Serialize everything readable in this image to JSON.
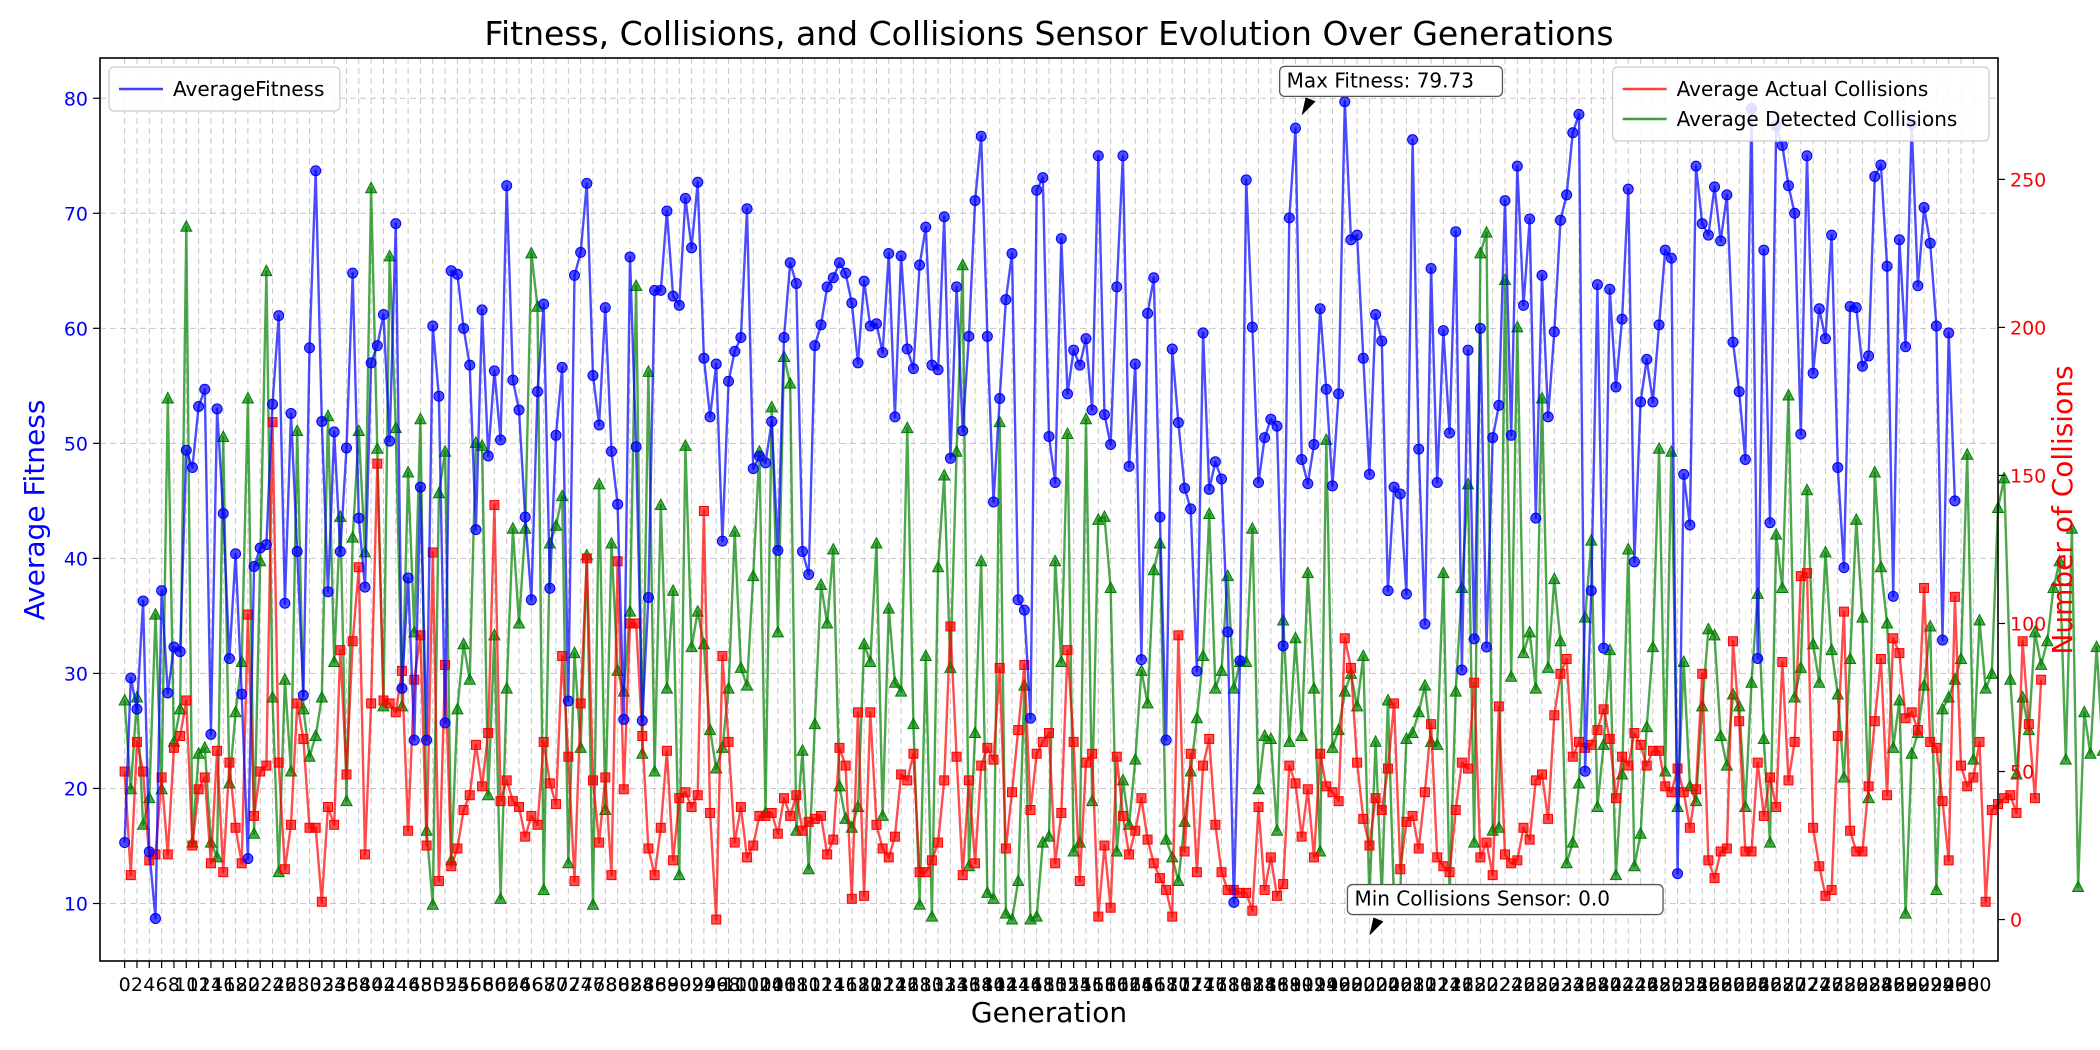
{
  "chart_data": {
    "type": "line",
    "title": "Fitness, Collisions, and Collisions Sensor Evolution Over Generations",
    "xlabel": "Generation",
    "ylabel_left": "Average Fitness",
    "ylabel_right": "Number of Collisions",
    "left_axis_color": "#0000ff",
    "right_axis_color": "#ff0000",
    "xlim": [
      -4,
      304
    ],
    "ylim_left": [
      5,
      83.5
    ],
    "ylim_right": [
      -14,
      291
    ],
    "x_ticks": [
      0,
      2,
      4,
      6,
      8,
      10,
      12,
      14,
      16,
      18,
      20,
      22,
      24,
      26,
      28,
      30,
      32,
      34,
      36,
      38,
      40,
      42,
      44,
      46,
      48,
      50,
      52,
      54,
      56,
      58,
      60,
      62,
      64,
      66,
      68,
      70,
      72,
      74,
      76,
      78,
      80,
      82,
      84,
      86,
      88,
      90,
      92,
      94,
      96,
      98,
      100,
      102,
      104,
      106,
      108,
      110,
      112,
      114,
      116,
      118,
      120,
      122,
      124,
      126,
      128,
      130,
      132,
      134,
      136,
      138,
      140,
      142,
      144,
      146,
      148,
      150,
      152,
      154,
      156,
      158,
      160,
      162,
      164,
      166,
      168,
      170,
      172,
      174,
      176,
      178,
      180,
      182,
      184,
      186,
      188,
      190,
      192,
      194,
      196,
      198,
      200,
      202,
      204,
      206,
      208,
      210,
      212,
      214,
      216,
      218,
      220,
      222,
      224,
      226,
      228,
      230,
      232,
      234,
      236,
      238,
      240,
      242,
      244,
      246,
      248,
      250,
      252,
      254,
      256,
      258,
      260,
      262,
      264,
      266,
      268,
      270,
      272,
      274,
      276,
      278,
      280,
      282,
      284,
      286,
      288,
      290,
      292,
      294,
      296,
      298,
      300
    ],
    "y_ticks_left": [
      10,
      20,
      30,
      40,
      50,
      60,
      70,
      80
    ],
    "y_ticks_right": [
      0,
      50,
      100,
      150,
      200,
      250
    ],
    "grid": true,
    "legend_left": {
      "placement": "top-left",
      "entries": [
        "AverageFitness"
      ]
    },
    "legend_right": {
      "placement": "top-right",
      "entries": [
        "Average Actual Collisions",
        "Average Detected Collisions"
      ]
    },
    "series": [
      {
        "name": "AverageFitness",
        "axis": "left",
        "color": "#0000ff",
        "marker": "circle",
        "values": [
          15.3,
          29.6,
          26.9,
          36.3,
          14.5,
          8.7,
          37.2,
          28.3,
          32.3,
          31.9,
          49.4,
          47.9,
          53.2,
          54.7,
          24.7,
          53.0,
          43.9,
          31.3,
          40.4,
          28.2,
          13.9,
          39.3,
          40.9,
          41.2,
          53.4,
          61.1,
          36.1,
          52.6,
          40.6,
          28.1,
          58.3,
          73.7,
          51.9,
          37.1,
          51.0,
          40.6,
          49.6,
          64.8,
          43.5,
          37.5,
          57.0,
          58.5,
          61.2,
          50.2,
          69.1,
          28.7,
          38.3,
          24.2,
          46.2,
          24.2,
          60.2,
          54.1,
          25.7,
          65.0,
          64.7,
          60.0,
          56.8,
          42.5,
          61.6,
          48.9,
          56.3,
          50.3,
          72.4,
          55.5,
          52.9,
          43.6,
          36.4,
          54.5,
          62.1,
          37.4,
          50.7,
          56.6,
          27.6,
          64.6,
          66.6,
          72.6,
          55.9,
          51.6,
          61.8,
          49.3,
          44.7,
          26.0,
          66.2,
          49.7,
          25.9,
          36.6,
          63.3,
          63.3,
          70.2,
          62.8,
          62.0,
          71.3,
          67.0,
          72.7,
          57.4,
          52.3,
          56.9,
          41.5,
          55.4,
          58.0,
          59.2,
          70.4,
          47.8,
          48.9,
          48.3,
          51.9,
          40.7,
          59.2,
          65.7,
          63.9,
          40.6,
          38.6,
          58.5,
          60.3,
          63.6,
          64.4,
          65.7,
          64.8,
          62.2,
          57.0,
          64.1,
          60.2,
          60.4,
          57.9,
          66.5,
          52.3,
          66.3,
          58.2,
          56.5,
          65.5,
          68.8,
          56.8,
          56.4,
          69.7,
          48.7,
          63.6,
          51.1,
          59.3,
          71.1,
          76.7,
          59.3,
          44.9,
          53.9,
          62.5,
          66.5,
          36.4,
          35.5,
          26.1,
          72.0,
          73.1,
          50.6,
          46.6,
          67.8,
          54.3,
          58.1,
          56.8,
          59.1,
          52.9,
          75.0,
          52.5,
          49.9,
          63.6,
          75.0,
          48.0,
          56.9,
          31.2,
          61.3,
          64.4,
          43.6,
          24.2,
          58.2,
          51.8,
          46.1,
          44.3,
          30.2,
          59.6,
          46.0,
          48.4,
          46.9,
          33.6,
          10.1,
          31.1,
          72.9,
          60.1,
          46.6,
          50.5,
          52.1,
          51.5,
          32.4,
          69.6,
          77.4,
          48.6,
          46.5,
          49.9,
          61.7,
          54.7,
          46.3,
          54.3,
          79.7,
          67.7,
          68.1,
          57.4,
          47.3,
          61.2,
          58.9,
          37.2,
          46.2,
          45.6,
          36.9,
          76.4,
          49.5,
          34.3,
          65.2,
          46.6,
          59.8,
          50.9,
          68.4,
          30.3,
          58.1,
          33.0,
          60.0,
          32.3,
          50.5,
          53.3,
          71.1,
          50.7,
          74.1,
          62.0,
          69.5,
          43.5,
          64.6,
          52.3,
          59.7,
          69.4,
          71.6,
          77.0,
          78.6,
          21.5,
          37.2,
          63.8,
          32.2,
          63.4,
          54.9,
          60.8,
          72.1,
          39.7,
          53.6,
          57.3,
          53.6,
          60.3,
          66.8,
          66.1,
          12.6,
          47.3,
          42.9,
          74.1,
          69.1,
          68.1,
          72.3,
          67.6,
          71.6,
          58.8,
          54.5,
          48.6,
          79.1,
          31.3,
          66.8,
          43.1,
          77.6,
          75.9,
          72.4,
          70.0,
          50.8,
          75.0,
          56.1,
          61.7,
          59.1,
          68.1,
          47.9,
          39.2,
          61.9,
          61.8,
          56.7,
          57.6,
          73.2,
          74.2,
          65.4,
          36.7,
          67.7,
          58.4,
          77.8,
          63.7,
          70.5,
          67.4,
          60.2,
          32.9,
          59.6,
          45.0
        ]
      },
      {
        "name": "Average Actual Collisions",
        "axis": "right",
        "color": "#ff0000",
        "marker": "square",
        "values": [
          50,
          15,
          60,
          50,
          20,
          22,
          48,
          22,
          58,
          62,
          74,
          25,
          44,
          48,
          19,
          57,
          16,
          53,
          31,
          19,
          103,
          35,
          50,
          52,
          168,
          53,
          17,
          32,
          73,
          61,
          31,
          31,
          6,
          38,
          32,
          91,
          49,
          94,
          119,
          22,
          73,
          154,
          74,
          73,
          70,
          84,
          30,
          81,
          96,
          25,
          124,
          13,
          86,
          18,
          24,
          37,
          42,
          59,
          45,
          63,
          140,
          40,
          47,
          40,
          38,
          28,
          35,
          32,
          60,
          46,
          39,
          89,
          55,
          13,
          73,
          122,
          47,
          26,
          48,
          15,
          121,
          44,
          100,
          100,
          62,
          24,
          15,
          31,
          57,
          20,
          41,
          43,
          38,
          42,
          138,
          36,
          0,
          89,
          60,
          26,
          38,
          21,
          25,
          35,
          35,
          36,
          29,
          41,
          35,
          42,
          30,
          33,
          34,
          35,
          22,
          27,
          58,
          52,
          7,
          70,
          8,
          70,
          32,
          24,
          21,
          28,
          49,
          47,
          56,
          16,
          16,
          20,
          26,
          47,
          99,
          55,
          15,
          47,
          19,
          52,
          58,
          54,
          85,
          24,
          43,
          64,
          86,
          37,
          56,
          60,
          63,
          19,
          36,
          91,
          60,
          13,
          53,
          56,
          1,
          25,
          4,
          55,
          35,
          22,
          30,
          41,
          27,
          19,
          14,
          10,
          1,
          96,
          23,
          56,
          16,
          52,
          61,
          32,
          16,
          10,
          10,
          9,
          9,
          3,
          38,
          10,
          21,
          8,
          12,
          52,
          46,
          28,
          44,
          21,
          56,
          45,
          43,
          40,
          95,
          85,
          53,
          34,
          25,
          41,
          37,
          51,
          73,
          17,
          33,
          35,
          24,
          43,
          66,
          21,
          18,
          16,
          37,
          53,
          51,
          80,
          21,
          26,
          15,
          72,
          22,
          19,
          20,
          31,
          27,
          47,
          49,
          34,
          69,
          83,
          88,
          55,
          60,
          58,
          59,
          64,
          71,
          61,
          41,
          55,
          52,
          63,
          59,
          52,
          57,
          57,
          45,
          43,
          51,
          43,
          31,
          44,
          83,
          20,
          14,
          23,
          24,
          94,
          67,
          23,
          23,
          53,
          35,
          48,
          38,
          87,
          47,
          60,
          116,
          117,
          31,
          18,
          8,
          10,
          62,
          104,
          30,
          23,
          23,
          45,
          67,
          88,
          42,
          95,
          90,
          68,
          70,
          64,
          112,
          60,
          58,
          40,
          20,
          109,
          52,
          45,
          48,
          60,
          6,
          37,
          39,
          41,
          42,
          36,
          94,
          66,
          41,
          81
        ]
      },
      {
        "name": "Average Detected Collisions",
        "axis": "right",
        "color": "#008000",
        "marker": "triangle",
        "values": [
          74,
          44,
          75,
          32,
          41,
          103,
          44,
          176,
          60,
          71,
          234,
          26,
          56,
          58,
          26,
          21,
          163,
          46,
          70,
          87,
          176,
          29,
          121,
          219,
          75,
          16,
          81,
          50,
          165,
          71,
          55,
          62,
          75,
          170,
          87,
          136,
          40,
          129,
          165,
          124,
          247,
          159,
          72,
          224,
          166,
          72,
          151,
          97,
          169,
          30,
          5,
          144,
          158,
          20,
          71,
          93,
          81,
          161,
          160,
          42,
          96,
          7,
          78,
          132,
          100,
          132,
          225,
          207,
          10,
          127,
          133,
          143,
          19,
          90,
          58,
          123,
          5,
          147,
          37,
          127,
          84,
          77,
          104,
          214,
          56,
          185,
          50,
          140,
          78,
          111,
          15,
          160,
          92,
          104,
          93,
          64,
          51,
          58,
          78,
          131,
          85,
          79,
          116,
          158,
          36,
          173,
          97,
          190,
          181,
          30,
          57,
          17,
          66,
          113,
          100,
          125,
          45,
          34,
          31,
          38,
          93,
          87,
          127,
          35,
          105,
          80,
          77,
          166,
          66,
          5,
          89,
          1,
          119,
          150,
          85,
          158,
          221,
          18,
          63,
          121,
          9,
          7,
          168,
          2,
          0,
          13,
          79,
          0,
          1,
          26,
          28,
          121,
          87,
          164,
          23,
          26,
          169,
          40,
          135,
          136,
          112,
          23,
          47,
          32,
          54,
          84,
          73,
          118,
          127,
          27,
          21,
          13,
          33,
          50,
          68,
          89,
          137,
          78,
          84,
          116,
          78,
          87,
          87,
          132,
          44,
          62,
          61,
          30,
          101,
          60,
          95,
          62,
          117,
          78,
          23,
          162,
          58,
          64,
          77,
          83,
          72,
          89,
          7,
          60,
          8,
          74,
          5,
          10,
          61,
          63,
          70,
          79,
          60,
          59,
          117,
          8,
          77,
          112,
          147,
          26,
          225,
          232,
          30,
          31,
          216,
          82,
          200,
          90,
          97,
          78,
          176,
          85,
          115,
          94,
          19,
          26,
          46,
          102,
          128,
          38,
          59,
          91,
          15,
          49,
          125,
          18,
          29,
          65,
          92,
          159,
          50,
          158,
          38,
          87,
          45,
          40,
          72,
          98,
          96,
          62,
          52,
          76,
          72,
          38,
          80,
          110,
          61,
          26,
          130,
          112,
          177,
          75,
          85,
          145,
          93,
          80,
          124,
          91,
          76,
          48,
          88,
          135,
          102,
          41,
          151,
          119,
          100,
          58,
          74,
          2,
          56,
          63,
          79,
          99,
          10,
          71,
          75,
          81,
          88,
          157,
          54,
          101,
          78,
          83,
          139,
          149,
          81,
          49,
          75,
          64,
          97,
          86,
          94,
          112,
          121,
          54,
          132,
          11,
          70,
          56,
          92,
          57,
          124
        ]
      }
    ],
    "annotations": [
      {
        "text": "Max Fitness: 79.73",
        "x": 191,
        "y": 79.73,
        "axis": "left"
      },
      {
        "text": "Min Collisions Sensor: 0.0",
        "x": 202,
        "y": 0.0,
        "axis": "right"
      }
    ]
  }
}
